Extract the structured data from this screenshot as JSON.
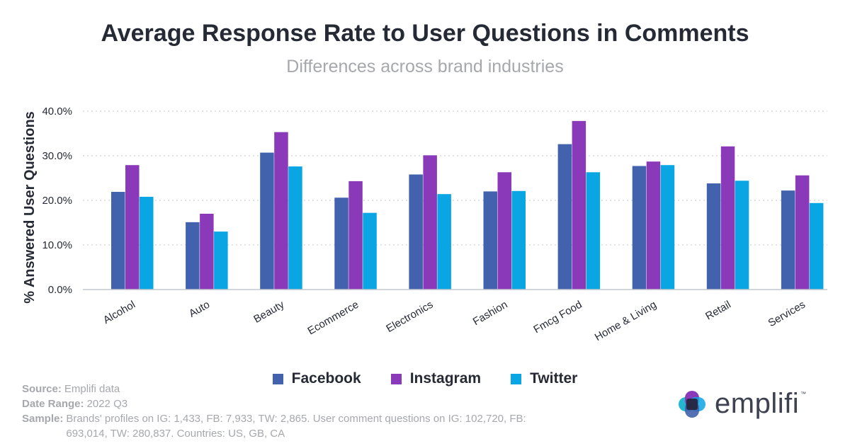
{
  "title": "Average Response Rate to User Questions in Comments",
  "subtitle": "Differences across brand industries",
  "chart_data": {
    "type": "bar",
    "title": "Average Response Rate to User Questions in Comments",
    "subtitle": "Differences across brand industries",
    "ylabel": "% Answered User Questions",
    "xlabel": "",
    "ylim": [
      0,
      40
    ],
    "yticks": [
      0,
      10,
      20,
      30,
      40
    ],
    "ytick_labels": [
      "0.0%",
      "10.0%",
      "20.0%",
      "30.0%",
      "40.0%"
    ],
    "grid": true,
    "legend_position": "bottom",
    "categories": [
      "Alcohol",
      "Auto",
      "Beauty",
      "Ecommerce",
      "Electronics",
      "Fashion",
      "Fmcg Food",
      "Home & Living",
      "Retail",
      "Services"
    ],
    "series": [
      {
        "name": "Facebook",
        "color": "#4262ad",
        "values": [
          21.9,
          15.1,
          30.7,
          20.6,
          25.8,
          22.0,
          32.6,
          27.7,
          23.8,
          22.2
        ]
      },
      {
        "name": "Instagram",
        "color": "#8a3ab9",
        "values": [
          27.9,
          17.0,
          35.3,
          24.3,
          30.1,
          26.3,
          37.8,
          28.7,
          32.1,
          25.6
        ]
      },
      {
        "name": "Twitter",
        "color": "#0aa6e3",
        "values": [
          20.8,
          13.0,
          27.6,
          17.2,
          21.4,
          22.1,
          26.3,
          27.9,
          24.4,
          19.4
        ]
      }
    ]
  },
  "footer": {
    "source_label": "Source:",
    "source_text": "Emplifi data",
    "date_label": "Date Range:",
    "date_text": "2022 Q3",
    "sample_label": "Sample:",
    "sample_text": "Brands' profiles on IG: 1,433, FB: 7,933, TW: 2,865. User comment questions on IG: 102,720, FB: 693,014, TW: 280,837. Countries: US, GB, CA"
  },
  "logo": {
    "text": "emplifi",
    "tm": "™"
  }
}
